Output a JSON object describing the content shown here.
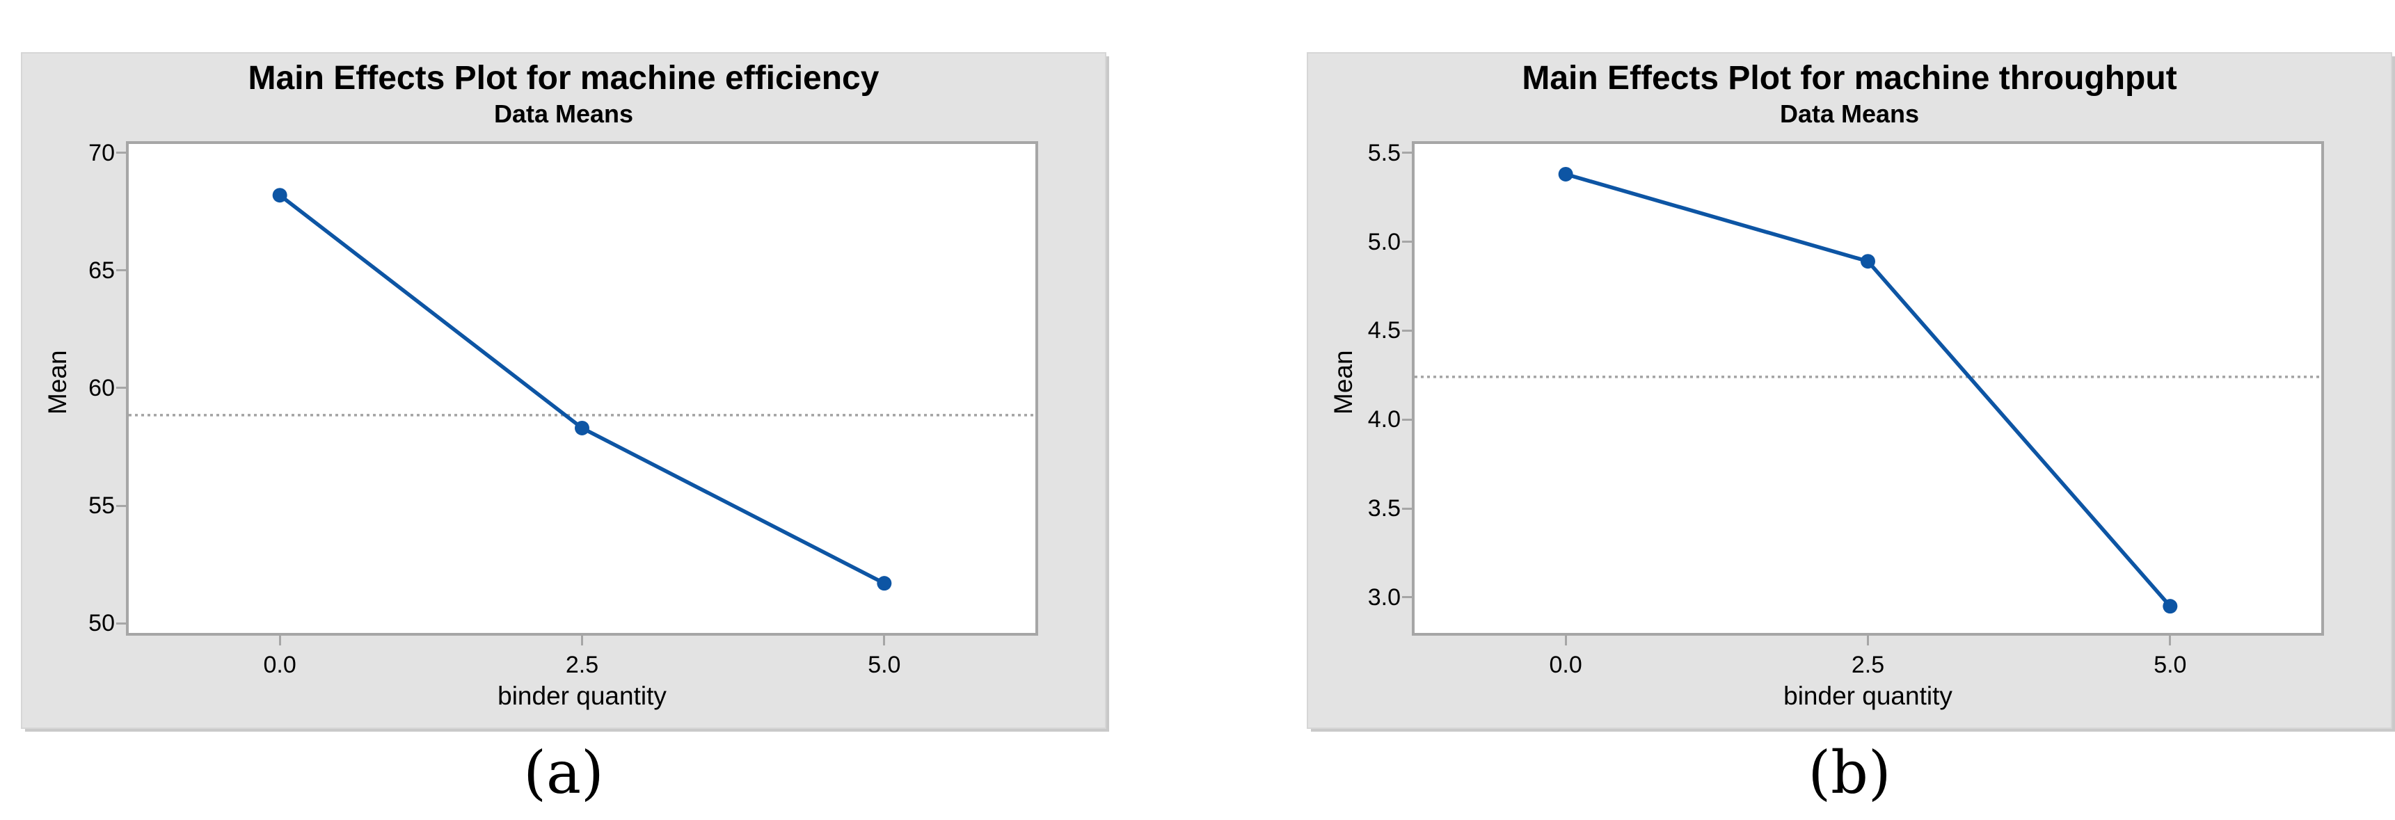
{
  "colors": {
    "series_blue": "#0d55a4",
    "panel_bg": "#e3e3e3",
    "plot_border_gray": "#a6a6a6",
    "mean_line_gray": "#a3a3a3",
    "text": "#000000"
  },
  "chart_data": [
    {
      "type": "line",
      "title": "Main Effects Plot for machine efficiency",
      "subtitle": "Data Means",
      "xlabel": "binder quantity",
      "ylabel": "Mean",
      "caption": "(a)",
      "categories": [
        "0.0",
        "2.5",
        "5.0"
      ],
      "x_values": [
        0.0,
        2.5,
        5.0
      ],
      "values": [
        68.2,
        58.3,
        51.7
      ],
      "mean_line": 58.85,
      "yticks": [
        70,
        65,
        60,
        55,
        50
      ],
      "ytick_labels": [
        "70",
        "65",
        "60",
        "55",
        "50"
      ],
      "ylim": [
        49.59,
        70.38
      ],
      "grid": false,
      "legend": "none",
      "marker": "circle",
      "mean_line_style": "dotted"
    },
    {
      "type": "line",
      "title": "Main Effects Plot for machine throughput",
      "subtitle": "Data Means",
      "xlabel": "binder quantity",
      "ylabel": "Mean",
      "caption": "(b)",
      "categories": [
        "0.0",
        "2.5",
        "5.0"
      ],
      "x_values": [
        0.0,
        2.5,
        5.0
      ],
      "values": [
        5.38,
        4.89,
        2.95
      ],
      "mean_line": 4.24,
      "yticks": [
        5.5,
        5.0,
        4.5,
        4.0,
        3.5,
        3.0
      ],
      "ytick_labels": [
        "5.5",
        "5.0",
        "4.5",
        "4.0",
        "3.5",
        "3.0"
      ],
      "ylim": [
        2.8,
        5.55
      ],
      "grid": false,
      "legend": "none",
      "marker": "circle",
      "mean_line_style": "dotted"
    }
  ]
}
